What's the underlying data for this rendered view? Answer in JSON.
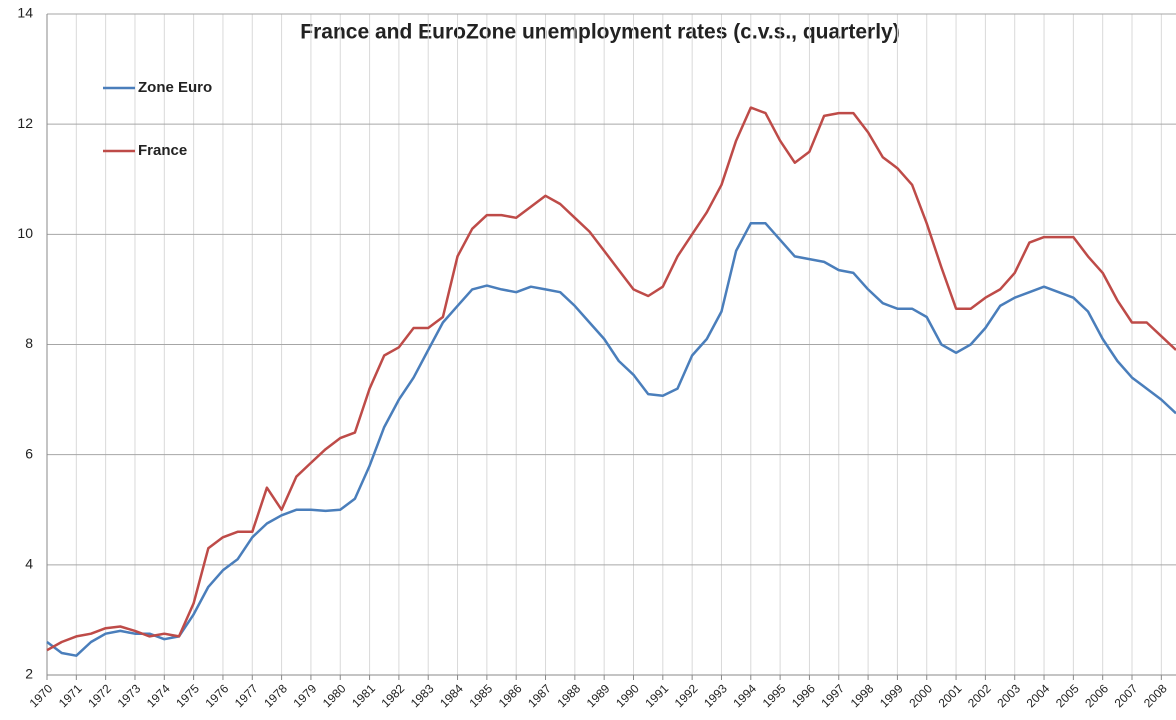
{
  "chart_data": {
    "type": "line",
    "title": "France and EuroZone unemployment rates (c.v.s., quarterly)",
    "x": [
      1970,
      1970.5,
      1971,
      1971.5,
      1972,
      1972.5,
      1973,
      1973.5,
      1974,
      1974.5,
      1975,
      1975.5,
      1976,
      1976.5,
      1977,
      1977.5,
      1978,
      1978.5,
      1979,
      1979.5,
      1980,
      1980.5,
      1981,
      1981.5,
      1982,
      1982.5,
      1983,
      1983.5,
      1984,
      1984.5,
      1985,
      1985.5,
      1986,
      1986.5,
      1987,
      1987.5,
      1988,
      1988.5,
      1989,
      1989.5,
      1990,
      1990.5,
      1991,
      1991.5,
      1992,
      1992.5,
      1993,
      1993.5,
      1994,
      1994.5,
      1995,
      1995.5,
      1996,
      1996.5,
      1997,
      1997.5,
      1998,
      1998.5,
      1999,
      1999.5,
      2000,
      2000.5,
      2001,
      2001.5,
      2002,
      2002.5,
      2003,
      2003.5,
      2004,
      2004.5,
      2005,
      2005.5,
      2006,
      2006.5,
      2007,
      2007.5,
      2008,
      2008.5
    ],
    "series": [
      {
        "name": "Zone Euro",
        "color": "#4a7ebb",
        "values": [
          2.6,
          2.4,
          2.35,
          2.6,
          2.75,
          2.8,
          2.75,
          2.75,
          2.65,
          2.7,
          3.1,
          3.6,
          3.9,
          4.1,
          4.5,
          4.75,
          4.9,
          5.0,
          5.0,
          4.98,
          5.0,
          5.2,
          5.8,
          6.5,
          7.0,
          7.4,
          7.9,
          8.4,
          8.7,
          9.0,
          9.07,
          9.0,
          8.95,
          9.05,
          9.0,
          8.95,
          8.7,
          8.4,
          8.1,
          7.7,
          7.45,
          7.1,
          7.07,
          7.2,
          7.8,
          8.1,
          8.6,
          9.7,
          10.2,
          10.2,
          9.9,
          9.6,
          9.55,
          9.5,
          9.35,
          9.3,
          9.0,
          8.75,
          8.65,
          8.65,
          8.5,
          8.0,
          7.85,
          8.0,
          8.3,
          8.7,
          8.85,
          8.95,
          9.05,
          8.95,
          8.85,
          8.6,
          8.1,
          7.7,
          7.4,
          7.2,
          7.0,
          6.75
        ]
      },
      {
        "name": "France",
        "color": "#be4b48",
        "values": [
          2.45,
          2.6,
          2.7,
          2.75,
          2.85,
          2.88,
          2.8,
          2.7,
          2.75,
          2.7,
          3.3,
          4.3,
          4.5,
          4.6,
          4.6,
          5.4,
          5.0,
          5.6,
          5.85,
          6.1,
          6.3,
          6.4,
          7.2,
          7.8,
          7.95,
          8.3,
          8.3,
          8.5,
          9.6,
          10.1,
          10.35,
          10.35,
          10.3,
          10.5,
          10.7,
          10.55,
          10.3,
          10.05,
          9.7,
          9.35,
          9.0,
          8.88,
          9.05,
          9.6,
          10.0,
          10.4,
          10.9,
          11.7,
          12.3,
          12.2,
          11.7,
          11.3,
          11.5,
          12.15,
          12.2,
          12.2,
          11.85,
          11.4,
          11.2,
          10.9,
          10.2,
          9.4,
          8.65,
          8.65,
          8.85,
          9.0,
          9.3,
          9.85,
          9.95,
          9.95,
          9.95,
          9.6,
          9.3,
          8.8,
          8.4,
          8.4,
          8.15,
          7.9
        ]
      }
    ],
    "xlim": [
      1970,
      2008.5
    ],
    "xticks": [
      1970,
      1971,
      1972,
      1973,
      1974,
      1975,
      1976,
      1977,
      1978,
      1979,
      1980,
      1981,
      1982,
      1983,
      1984,
      1985,
      1986,
      1987,
      1988,
      1989,
      1990,
      1991,
      1992,
      1993,
      1994,
      1995,
      1996,
      1997,
      1998,
      1999,
      2000,
      2001,
      2002,
      2003,
      2004,
      2005,
      2006,
      2007,
      2008
    ],
    "ylim": [
      2,
      14
    ],
    "yticks": [
      2,
      4,
      6,
      8,
      10,
      12,
      14
    ],
    "grid": true,
    "legend": "upper left"
  }
}
